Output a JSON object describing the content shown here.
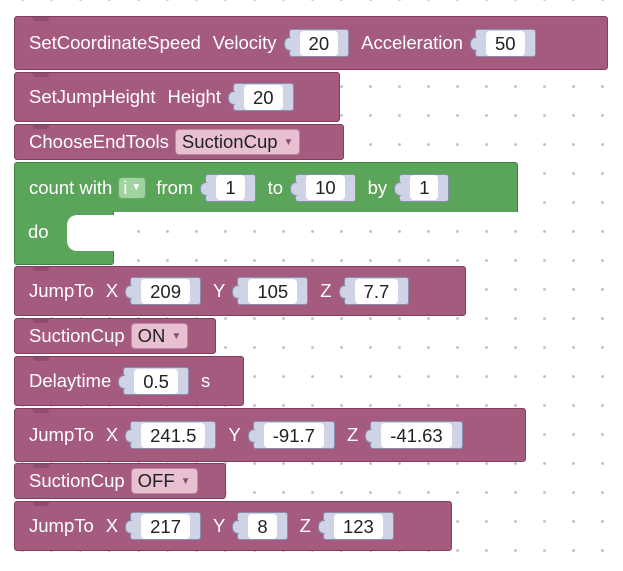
{
  "blocks": {
    "set_speed": {
      "label": "SetCoordinateSpeed",
      "velocity_label": "Velocity",
      "velocity": "20",
      "accel_label": "Acceleration",
      "accel": "50"
    },
    "set_jump": {
      "label": "SetJumpHeight",
      "height_label": "Height",
      "height": "20"
    },
    "end_tools": {
      "label": "ChooseEndTools",
      "value": "SuctionCup"
    },
    "loop": {
      "label": "count with",
      "var": "i",
      "from_label": "from",
      "from": "1",
      "to_label": "to",
      "to": "10",
      "by_label": "by",
      "by": "1",
      "do_label": "do"
    },
    "jump1": {
      "label": "JumpTo",
      "x_label": "X",
      "x": "209",
      "y_label": "Y",
      "y": "105",
      "z_label": "Z",
      "z": "7.7"
    },
    "suction1": {
      "label": "SuctionCup",
      "value": "ON"
    },
    "delay": {
      "label": "Delaytime",
      "value": "0.5",
      "unit": "s"
    },
    "jump2": {
      "label": "JumpTo",
      "x_label": "X",
      "x": "241.5",
      "y_label": "Y",
      "y": "-91.7",
      "z_label": "Z",
      "z": "-41.63"
    },
    "suction2": {
      "label": "SuctionCup",
      "value": "OFF"
    },
    "jump3": {
      "label": "JumpTo",
      "x_label": "X",
      "x": "217",
      "y_label": "Y",
      "y": "8",
      "z_label": "Z",
      "z": "123"
    }
  },
  "colors": {
    "motion_block": "#a55b80",
    "loop_block": "#5ba55b",
    "socket": "#cfd3e6"
  },
  "icons": {
    "dropdown": "dropdown-arrow-icon"
  }
}
